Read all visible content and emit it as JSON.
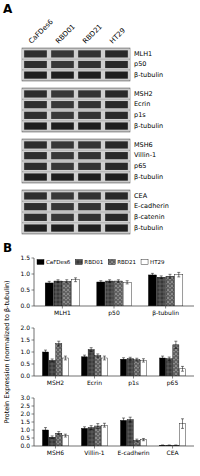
{
  "y_label": "Protein Expression (normalized to β-tubulin)",
  "chart_data": [
    {
      "type": "western_blot",
      "title": "A",
      "categories": [
        "CaFDes6",
        "RBD01",
        "RBD21",
        "HT29"
      ],
      "blot_groups": [
        [
          "MLH1",
          "p50",
          "β-tubulin"
        ],
        [
          "MSH2",
          "Ecrin",
          "p1s",
          "β-tubulin"
        ],
        [
          "MSH6",
          "Villin-1",
          "p65",
          "β-tubulin"
        ],
        [
          "CEA",
          "E-cadherin",
          "β-catenin",
          "β-tubulin"
        ]
      ]
    },
    {
      "type": "bar",
      "title": "B",
      "categories": [
        "MLH1",
        "p50",
        "β-tubulin"
      ],
      "series": [
        {
          "name": "CaFDes6",
          "color": "#000000",
          "values": [
            0.72,
            0.75,
            0.97
          ],
          "errors": [
            0.05,
            0.04,
            0.05
          ]
        },
        {
          "name": "RBD01",
          "color": "#555555",
          "values": [
            0.78,
            0.78,
            0.9
          ],
          "errors": [
            0.04,
            0.04,
            0.04
          ]
        },
        {
          "name": "RBD21",
          "color": "#888888",
          "values": [
            0.77,
            0.78,
            0.93
          ],
          "errors": [
            0.05,
            0.04,
            0.06
          ]
        },
        {
          "name": "HT29",
          "color": "#ffffff",
          "values": [
            0.82,
            0.74,
            0.98
          ],
          "errors": [
            0.06,
            0.05,
            0.07
          ]
        }
      ],
      "ylim": [
        0,
        1.5
      ],
      "yticks": [
        {
          "value": 0,
          "label": "0.0"
        },
        0.5,
        {
          "value": 1.0,
          "label": "1.0"
        },
        1.5
      ],
      "legend": "upper left"
    },
    {
      "type": "bar",
      "categories": [
        "MSH2",
        "Ecrin",
        "p1s",
        "p65"
      ],
      "series": [
        {
          "color": "#000000",
          "values": [
            1.0,
            0.8,
            0.7,
            0.75
          ],
          "errors": [
            0.08,
            0.07,
            0.06,
            0.08
          ]
        },
        {
          "color": "#555555",
          "values": [
            0.65,
            1.1,
            0.72,
            0.72
          ],
          "errors": [
            0.06,
            0.08,
            0.06,
            0.07
          ]
        },
        {
          "color": "#888888",
          "values": [
            1.35,
            0.85,
            0.68,
            1.3
          ],
          "errors": [
            0.1,
            0.07,
            0.06,
            0.15
          ]
        },
        {
          "color": "#ffffff",
          "values": [
            0.75,
            0.75,
            0.65,
            0.3
          ],
          "errors": [
            0.08,
            0.08,
            0.07,
            0.1
          ]
        }
      ],
      "ylim": [
        0,
        2
      ],
      "yticks": [
        {
          "value": 0,
          "label": "0.0"
        },
        0.5,
        {
          "value": 1.0,
          "label": "1.0"
        },
        1.5,
        {
          "value": 2.0,
          "label": "2.0"
        }
      ]
    },
    {
      "type": "bar",
      "categories": [
        "MSH6",
        "Villin-1",
        "E-cadherin",
        "CEA"
      ],
      "series": [
        {
          "color": "#000000",
          "values": [
            1.0,
            1.1,
            1.6,
            0.05
          ],
          "errors": [
            0.15,
            0.1,
            0.15,
            0.01
          ]
        },
        {
          "color": "#555555",
          "values": [
            0.55,
            1.15,
            1.65,
            0.05
          ],
          "errors": [
            0.08,
            0.12,
            0.15,
            0.01
          ]
        },
        {
          "color": "#888888",
          "values": [
            0.8,
            1.25,
            0.35,
            0.05
          ],
          "errors": [
            0.1,
            0.15,
            0.08,
            0.01
          ]
        },
        {
          "color": "#ffffff",
          "values": [
            0.65,
            1.3,
            0.4,
            1.4
          ],
          "errors": [
            0.09,
            0.12,
            0.07,
            0.3
          ]
        }
      ],
      "ylim": [
        0,
        3
      ],
      "yticks": [
        {
          "value": 0,
          "label": "0.0"
        },
        0.5,
        {
          "value": 1.0,
          "label": "1.0"
        },
        1.5,
        {
          "value": 2.0,
          "label": "2.0"
        },
        2.5,
        {
          "value": 3.0,
          "label": "3.0"
        }
      ]
    }
  ]
}
